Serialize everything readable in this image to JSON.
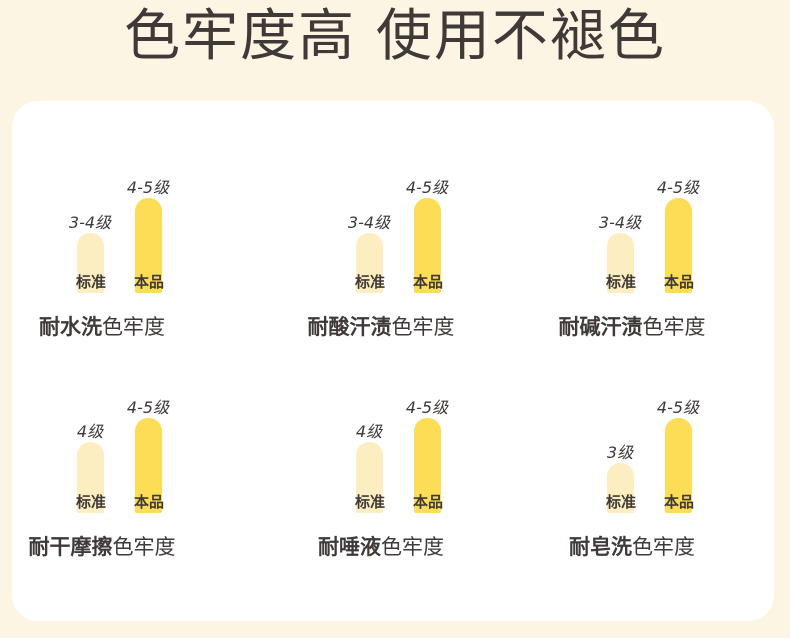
{
  "title": "色牢度高 使用不褪色",
  "legend": {
    "standard_label": "标准",
    "product_label": "本品"
  },
  "caption_suffix": "色牢度",
  "metrics": [
    {
      "name": "耐水洗",
      "standard": "3-4级",
      "standard_level": 3.5,
      "product": "4-5级",
      "product_level": 4.5
    },
    {
      "name": "耐酸汗渍",
      "standard": "3-4级",
      "standard_level": 3.5,
      "product": "4-5级",
      "product_level": 4.5
    },
    {
      "name": "耐碱汗渍",
      "standard": "3-4级",
      "standard_level": 3.5,
      "product": "4-5级",
      "product_level": 4.5
    },
    {
      "name": "耐干摩擦",
      "standard": "4级",
      "standard_level": 4,
      "product": "4-5级",
      "product_level": 4.5
    },
    {
      "name": "耐唾液",
      "standard": "4级",
      "standard_level": 4,
      "product": "4-5级",
      "product_level": 4.5
    },
    {
      "name": "耐皂洗",
      "standard": "3级",
      "standard_level": 3,
      "product": "4-5级",
      "product_level": 4.5
    }
  ]
}
